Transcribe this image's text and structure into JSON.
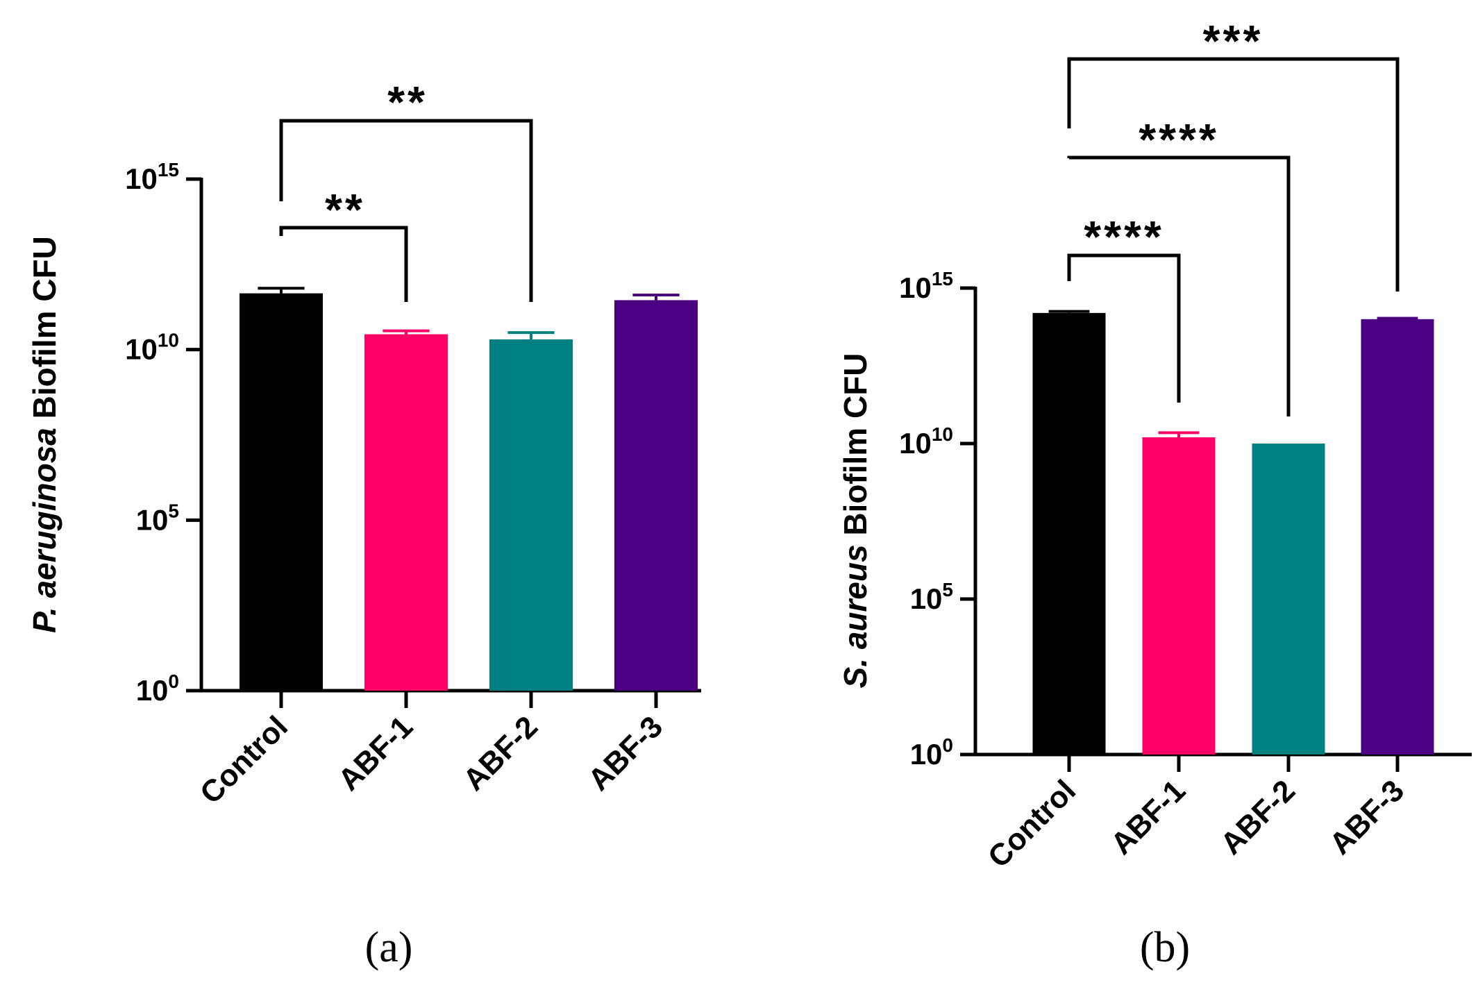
{
  "chart_data": [
    {
      "type": "bar",
      "panel_label": "(a)",
      "ylabel_italic": "P. aeruginosa",
      "ylabel_rest": " Biofilm CFU",
      "yscale": "log10",
      "ylim_exponent": [
        0,
        15
      ],
      "yticks": [
        {
          "base": "10",
          "exp": "15",
          "value_exp": 15
        },
        {
          "base": "10",
          "exp": "10",
          "value_exp": 10
        },
        {
          "base": "10",
          "exp": "5",
          "value_exp": 5
        },
        {
          "base": "10",
          "exp": "0",
          "value_exp": 0
        }
      ],
      "categories": [
        "Control",
        "ABF-1",
        "ABF-2",
        "ABF-3"
      ],
      "colors": [
        "#000000",
        "#FF0066",
        "#008080",
        "#4B0082"
      ],
      "values_log10": [
        11.65,
        10.45,
        10.3,
        11.45
      ],
      "errors_log10": [
        0.15,
        0.1,
        0.2,
        0.15
      ],
      "significance": [
        {
          "from": "Control",
          "to": "ABF-1",
          "label": "**"
        },
        {
          "from": "Control",
          "to": "ABF-2",
          "label": "**"
        }
      ]
    },
    {
      "type": "bar",
      "panel_label": "(b)",
      "ylabel_italic": "S. aureus",
      "ylabel_rest": " Biofilm CFU",
      "yscale": "log10",
      "ylim_exponent": [
        0,
        15
      ],
      "yticks": [
        {
          "base": "10",
          "exp": "15",
          "value_exp": 15
        },
        {
          "base": "10",
          "exp": "10",
          "value_exp": 10
        },
        {
          "base": "10",
          "exp": "5",
          "value_exp": 5
        },
        {
          "base": "10",
          "exp": "0",
          "value_exp": 0
        }
      ],
      "categories": [
        "Control",
        "ABF-1",
        "ABF-2",
        "ABF-3"
      ],
      "colors": [
        "#000000",
        "#FF0066",
        "#008080",
        "#4B0082"
      ],
      "values_log10": [
        14.2,
        10.2,
        10.0,
        14.0
      ],
      "errors_log10": [
        0.05,
        0.15,
        0.0,
        0.03
      ],
      "significance": [
        {
          "from": "Control",
          "to": "ABF-1",
          "label": "****"
        },
        {
          "from": "Control",
          "to": "ABF-2",
          "label": "****"
        },
        {
          "from": "Control",
          "to": "ABF-3",
          "label": "***"
        }
      ]
    }
  ]
}
